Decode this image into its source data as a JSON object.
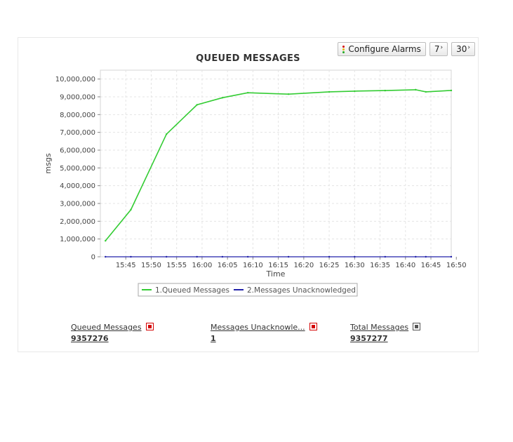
{
  "toolbar": {
    "configure_alarms_label": "Configure Alarms",
    "period_7_label": "7",
    "period_30_label": "30"
  },
  "colors": {
    "queued": "#33cc33",
    "unacked": "#2222aa",
    "alarm_red": "#d40000"
  },
  "chart_data": {
    "type": "line",
    "title": "QUEUED MESSAGES",
    "xlabel": "Time",
    "ylabel": "msgs",
    "ylim": [
      0,
      10500000
    ],
    "yticks": [
      0,
      1000000,
      2000000,
      3000000,
      4000000,
      5000000,
      6000000,
      7000000,
      8000000,
      9000000,
      10000000
    ],
    "ytick_labels": [
      "0",
      "1,000,000",
      "2,000,000",
      "3,000,000",
      "4,000,000",
      "5,000,000",
      "6,000,000",
      "7,000,000",
      "8,000,000",
      "9,000,000",
      "10,000,000"
    ],
    "xlim": [
      "15:40",
      "16:49"
    ],
    "xticks": [
      "15:45",
      "15:50",
      "15:55",
      "16:00",
      "16:05",
      "16:10",
      "16:15",
      "16:20",
      "16:25",
      "16:30",
      "16:35",
      "16:40",
      "16:45",
      "16:50"
    ],
    "grid": true,
    "legend_position": "bottom",
    "x": [
      "15:41",
      "15:46",
      "15:53",
      "15:59",
      "16:04",
      "16:09",
      "16:17",
      "16:25",
      "16:30",
      "16:36",
      "16:42",
      "16:44",
      "16:49"
    ],
    "series": [
      {
        "name": "1.Queued Messages",
        "color": "#33cc33",
        "values": [
          900000,
          2650000,
          6900000,
          8550000,
          8950000,
          9230000,
          9150000,
          9280000,
          9320000,
          9350000,
          9400000,
          9280000,
          9357276
        ]
      },
      {
        "name": "2.Messages Unacknowledged",
        "color": "#2222aa",
        "values": [
          1,
          1,
          1,
          1,
          1,
          1,
          1,
          1,
          1,
          1,
          1,
          1,
          1
        ]
      }
    ]
  },
  "stats": [
    {
      "label": "Queued Messages",
      "value": "9357276",
      "icon": "alarm-red-icon"
    },
    {
      "label": "Messages Unacknowle...",
      "value": "1",
      "icon": "alarm-red-icon"
    },
    {
      "label": "Total Messages ",
      "value": "9357277",
      "icon": "alarm-neutral-icon"
    }
  ]
}
